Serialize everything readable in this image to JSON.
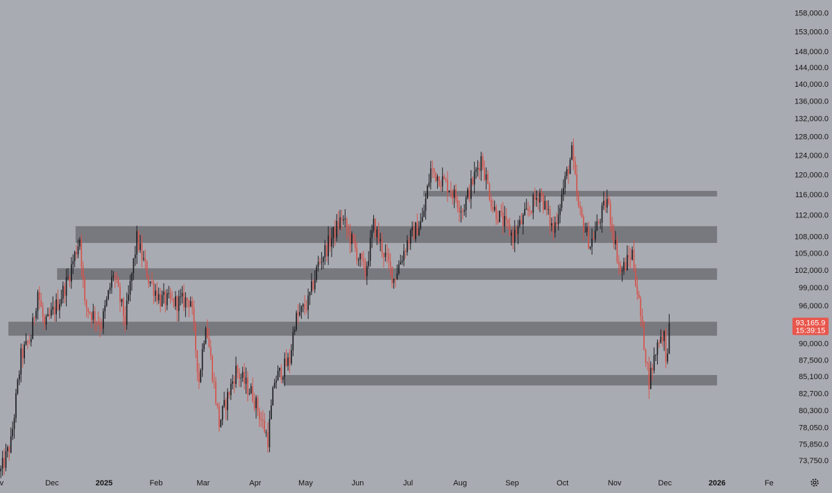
{
  "colors": {
    "background": "#a9abb2",
    "zone": "#6e7076",
    "candle_up": "#1c1d21",
    "candle_down": "#d4524a",
    "price_tag": "#e8564c",
    "axis_text": "#141414"
  },
  "icons": {
    "settings": "gear-icon"
  },
  "chart_data": {
    "type": "candlestick",
    "title": "",
    "xlabel": "",
    "ylabel": "",
    "y_scale": "log",
    "ylim": [
      72300,
      161500
    ],
    "xlim": [
      "2024-10-31",
      "2026-02-12"
    ],
    "grid": false,
    "y_ticks": [
      "158,000.0",
      "153,000.0",
      "148,000.0",
      "144,000.0",
      "140,000.0",
      "136,000.0",
      "132,000.0",
      "128,000.0",
      "124,000.0",
      "120,000.0",
      "116,000.0",
      "112,000.0",
      "108,000.0",
      "105,000.0",
      "102,000.0",
      "99,000.0",
      "96,000.0",
      "90,000.0",
      "87,500.0",
      "85,100.0",
      "82,700.0",
      "80,300.0",
      "78,050.0",
      "75,850.0",
      "73,750.0"
    ],
    "x_ticks": [
      {
        "label": "v",
        "date": "2024-11-01"
      },
      {
        "label": "Dec",
        "date": "2024-12-01"
      },
      {
        "label": "2025",
        "date": "2025-01-01",
        "bold": true
      },
      {
        "label": "Feb",
        "date": "2025-02-01"
      },
      {
        "label": "Mar",
        "date": "2025-03-01"
      },
      {
        "label": "Apr",
        "date": "2025-04-01"
      },
      {
        "label": "May",
        "date": "2025-05-01"
      },
      {
        "label": "Jun",
        "date": "2025-06-01"
      },
      {
        "label": "Jul",
        "date": "2025-07-01"
      },
      {
        "label": "Aug",
        "date": "2025-08-01"
      },
      {
        "label": "Sep",
        "date": "2025-09-01"
      },
      {
        "label": "Oct",
        "date": "2025-10-01"
      },
      {
        "label": "Nov",
        "date": "2025-11-01"
      },
      {
        "label": "Dec",
        "date": "2025-12-01"
      },
      {
        "label": "2026",
        "date": "2026-01-01",
        "bold": true
      },
      {
        "label": "Fe",
        "date": "2026-02-01"
      }
    ],
    "last_price": {
      "price": "93,165.9",
      "countdown": "15:39:15",
      "value": 93165.9
    },
    "zones": [
      {
        "start": "2024-12-15",
        "end": "2026-01-01",
        "low": 106800,
        "high": 109900
      },
      {
        "start": "2024-12-04",
        "end": "2026-01-01",
        "low": 100300,
        "high": 102300
      },
      {
        "start": "2024-11-05",
        "end": "2026-01-01",
        "low": 91200,
        "high": 93400
      },
      {
        "start": "2025-04-18",
        "end": "2026-01-01",
        "low": 83800,
        "high": 85300
      },
      {
        "start": "2025-07-10",
        "end": "2026-01-01",
        "low": 115600,
        "high": 116700
      }
    ],
    "price_path": [
      {
        "date": "2024-10-31",
        "price": 72400
      },
      {
        "date": "2024-11-06",
        "price": 76000
      },
      {
        "date": "2024-11-12",
        "price": 88000
      },
      {
        "date": "2024-11-18",
        "price": 91000
      },
      {
        "date": "2024-11-22",
        "price": 98500
      },
      {
        "date": "2024-11-26",
        "price": 92500
      },
      {
        "date": "2024-12-05",
        "price": 97000
      },
      {
        "date": "2024-12-10",
        "price": 100500
      },
      {
        "date": "2024-12-17",
        "price": 107800
      },
      {
        "date": "2024-12-20",
        "price": 96000
      },
      {
        "date": "2024-12-30",
        "price": 93000
      },
      {
        "date": "2025-01-06",
        "price": 101500
      },
      {
        "date": "2025-01-13",
        "price": 93500
      },
      {
        "date": "2025-01-20",
        "price": 107500
      },
      {
        "date": "2025-01-27",
        "price": 100500
      },
      {
        "date": "2025-02-03",
        "price": 97000
      },
      {
        "date": "2025-02-12",
        "price": 96500
      },
      {
        "date": "2025-02-21",
        "price": 97000
      },
      {
        "date": "2025-02-26",
        "price": 84500
      },
      {
        "date": "2025-03-02",
        "price": 93500
      },
      {
        "date": "2025-03-10",
        "price": 78500
      },
      {
        "date": "2025-03-20",
        "price": 86000
      },
      {
        "date": "2025-03-30",
        "price": 82500
      },
      {
        "date": "2025-04-08",
        "price": 76500
      },
      {
        "date": "2025-04-12",
        "price": 84500
      },
      {
        "date": "2025-04-21",
        "price": 87500
      },
      {
        "date": "2025-04-24",
        "price": 93500
      },
      {
        "date": "2025-05-02",
        "price": 96500
      },
      {
        "date": "2025-05-08",
        "price": 103000
      },
      {
        "date": "2025-05-22",
        "price": 111500
      },
      {
        "date": "2025-06-05",
        "price": 101500
      },
      {
        "date": "2025-06-10",
        "price": 110000
      },
      {
        "date": "2025-06-22",
        "price": 100500
      },
      {
        "date": "2025-06-30",
        "price": 107000
      },
      {
        "date": "2025-07-09",
        "price": 111000
      },
      {
        "date": "2025-07-14",
        "price": 121000
      },
      {
        "date": "2025-07-25",
        "price": 117500
      },
      {
        "date": "2025-08-02",
        "price": 113000
      },
      {
        "date": "2025-08-13",
        "price": 123500
      },
      {
        "date": "2025-08-20",
        "price": 113500
      },
      {
        "date": "2025-09-01",
        "price": 108000
      },
      {
        "date": "2025-09-17",
        "price": 116500
      },
      {
        "date": "2025-09-25",
        "price": 109000
      },
      {
        "date": "2025-10-06",
        "price": 124500
      },
      {
        "date": "2025-10-10",
        "price": 113000
      },
      {
        "date": "2025-10-17",
        "price": 106500
      },
      {
        "date": "2025-10-27",
        "price": 115000
      },
      {
        "date": "2025-11-04",
        "price": 101500
      },
      {
        "date": "2025-11-11",
        "price": 105000
      },
      {
        "date": "2025-11-21",
        "price": 84500
      },
      {
        "date": "2025-11-27",
        "price": 91000
      },
      {
        "date": "2025-11-30",
        "price": 91500
      },
      {
        "date": "2025-12-01",
        "price": 86500
      },
      {
        "date": "2025-12-03",
        "price": 93165.9
      }
    ]
  }
}
